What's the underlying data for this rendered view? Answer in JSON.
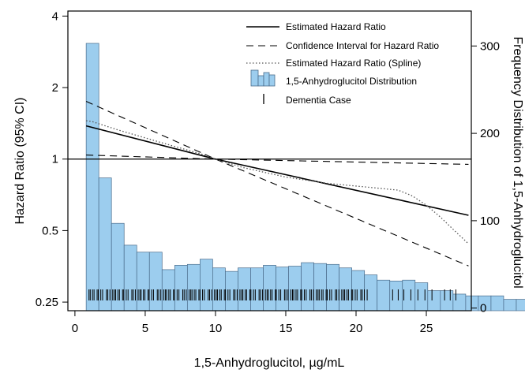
{
  "chart_data": {
    "type": "line",
    "xlabel": "1,5-Anhydroglucitol, µg/mL",
    "ylabel_left": "Hazard Ratio (95% CI)",
    "ylabel_right": "Frequency Distribution of 1,5-Anhydroglucitol",
    "x_range": [
      -0.5,
      28.2
    ],
    "x_ticks": [
      0,
      5,
      10,
      15,
      20,
      25
    ],
    "y_left_scale": "log",
    "y_left_range": [
      0.23,
      4.2
    ],
    "y_left_ticks": [
      0.25,
      0.5,
      1,
      2,
      4
    ],
    "y_left_tick_labels": [
      "0.25",
      "0.5",
      "1",
      "2",
      "4"
    ],
    "y_right_range": [
      -3,
      340
    ],
    "y_right_ticks": [
      0,
      100,
      200,
      300
    ],
    "reference_line": 1,
    "legend": {
      "position": "top-right",
      "entries": [
        "Estimated Hazard Ratio",
        "Confidence Interval for Hazard Ratio",
        "Estimated Hazard Ratio (Spline)",
        "1,5-Anhydroglucitol Distribution",
        "Dementia Case"
      ]
    },
    "series": [
      {
        "name": "Estimated Hazard Ratio",
        "style": "solid",
        "x": [
          0.8,
          10,
          28
        ],
        "y": [
          1.38,
          1.0,
          0.58
        ]
      },
      {
        "name": "Confidence Interval for Hazard Ratio",
        "style": "dashed",
        "x": [
          0.8,
          10,
          28
        ],
        "y": [
          1.75,
          1.0,
          0.355
        ]
      },
      {
        "name": "Confidence Interval for Hazard Ratio",
        "style": "dashed",
        "x": [
          0.8,
          10,
          28
        ],
        "y": [
          1.04,
          1.0,
          0.95
        ]
      },
      {
        "name": "Estimated Hazard Ratio (Spline)",
        "style": "dotted",
        "x": [
          0.8,
          1.2,
          3,
          6,
          9,
          10,
          12,
          15,
          18,
          20,
          21,
          22,
          23,
          24,
          25,
          26,
          27,
          28
        ],
        "y": [
          1.45,
          1.44,
          1.33,
          1.18,
          1.05,
          1.0,
          0.92,
          0.84,
          0.79,
          0.77,
          0.76,
          0.75,
          0.74,
          0.7,
          0.64,
          0.57,
          0.5,
          0.44
        ]
      }
    ],
    "histogram": {
      "name": "1,5-Anhydroglucitol Distribution",
      "bin_width": 0.9,
      "bin_start": 0.8,
      "color": "#9ccdee",
      "edge_color": "#4a6b8a",
      "counts": [
        303,
        149,
        97,
        72,
        64,
        64,
        44,
        49,
        50,
        56,
        46,
        42,
        46,
        46,
        49,
        47,
        48,
        52,
        51,
        50,
        46,
        43,
        38,
        32,
        31,
        32,
        29,
        20,
        20,
        16,
        14,
        14,
        14,
        10,
        10,
        9,
        9,
        8,
        7,
        8,
        6,
        7,
        9
      ]
    },
    "dementia_cases": {
      "name": "Dementia Case",
      "dense_range": [
        1.0,
        20.8
      ],
      "extra_x": [
        22.6,
        23.0,
        23.4,
        23.9,
        24.4,
        24.9,
        25.4,
        26.3,
        26.7,
        27.1
      ]
    }
  }
}
